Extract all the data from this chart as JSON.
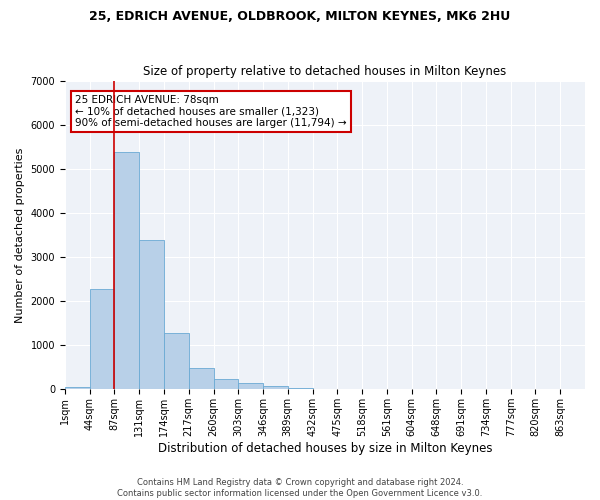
{
  "title1": "25, EDRICH AVENUE, OLDBROOK, MILTON KEYNES, MK6 2HU",
  "title2": "Size of property relative to detached houses in Milton Keynes",
  "xlabel": "Distribution of detached houses by size in Milton Keynes",
  "ylabel": "Number of detached properties",
  "footer1": "Contains HM Land Registry data © Crown copyright and database right 2024.",
  "footer2": "Contains public sector information licensed under the Open Government Licence v3.0.",
  "bin_labels": [
    "1sqm",
    "44sqm",
    "87sqm",
    "131sqm",
    "174sqm",
    "217sqm",
    "260sqm",
    "303sqm",
    "346sqm",
    "389sqm",
    "432sqm",
    "475sqm",
    "518sqm",
    "561sqm",
    "604sqm",
    "648sqm",
    "691sqm",
    "734sqm",
    "777sqm",
    "820sqm",
    "863sqm"
  ],
  "bar_values": [
    55,
    2270,
    5400,
    3400,
    1280,
    490,
    230,
    150,
    70,
    35,
    10,
    5,
    2,
    1,
    0,
    0,
    0,
    0,
    0,
    0,
    0
  ],
  "bar_color": "#b8d0e8",
  "bar_edge_color": "#6aaad4",
  "vline_x": 2.0,
  "vline_color": "#cc0000",
  "annotation_text": "25 EDRICH AVENUE: 78sqm\n← 10% of detached houses are smaller (1,323)\n90% of semi-detached houses are larger (11,794) →",
  "annotation_box_color": "white",
  "annotation_box_edge_color": "#cc0000",
  "ylim": [
    0,
    7000
  ],
  "yticks": [
    0,
    1000,
    2000,
    3000,
    4000,
    5000,
    6000,
    7000
  ],
  "background_color": "#eef2f8",
  "grid_color": "#ffffff",
  "title1_fontsize": 9,
  "title2_fontsize": 8.5,
  "xlabel_fontsize": 8.5,
  "ylabel_fontsize": 8,
  "tick_fontsize": 7,
  "annotation_fontsize": 7.5
}
